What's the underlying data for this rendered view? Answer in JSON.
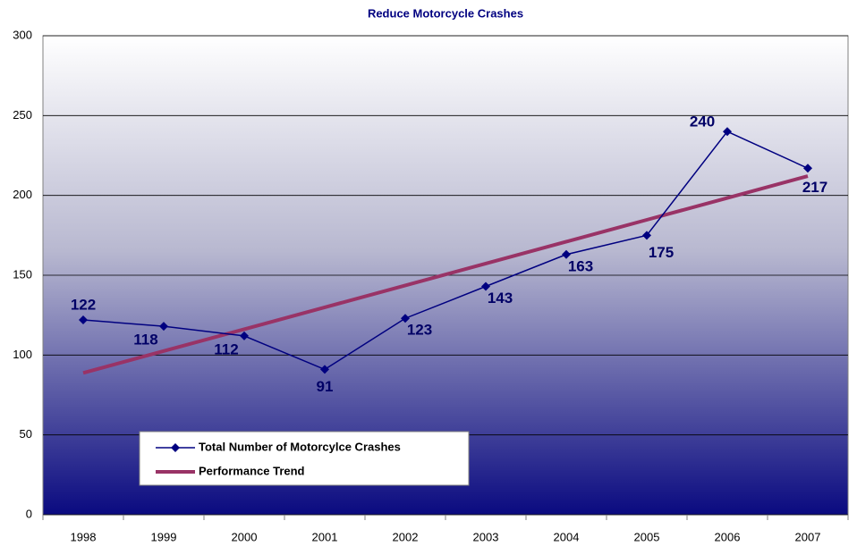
{
  "chart_data": {
    "type": "line",
    "title": "Reduce Motorcycle Crashes",
    "categories": [
      "1998",
      "1999",
      "2000",
      "2001",
      "2002",
      "2003",
      "2004",
      "2005",
      "2006",
      "2007"
    ],
    "series": [
      {
        "name": "Total Number of Motorcylce Crashes",
        "color": "#000080",
        "values": [
          122,
          118,
          112,
          91,
          123,
          143,
          163,
          175,
          240,
          217
        ],
        "markers": "diamond"
      },
      {
        "name": "Performance Trend",
        "color": "#993366",
        "values": [
          88.8,
          102.5,
          116.2,
          129.9,
          143.6,
          157.3,
          171.0,
          184.7,
          198.4,
          212.1
        ]
      }
    ],
    "ylim": [
      0,
      300
    ],
    "yticks": [
      0,
      50,
      100,
      150,
      200,
      250,
      300
    ],
    "grid": true,
    "data_labels_series": 0
  }
}
